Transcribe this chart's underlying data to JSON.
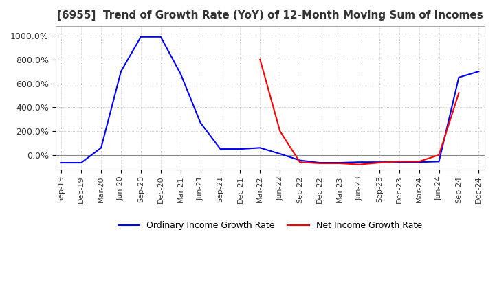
{
  "title": "[6955]  Trend of Growth Rate (YoY) of 12-Month Moving Sum of Incomes",
  "title_fontsize": 11,
  "ylim": [
    -120,
    1080
  ],
  "yticks": [
    0,
    200,
    400,
    600,
    800,
    1000
  ],
  "ytick_labels": [
    "0.0%",
    "200.0%",
    "400.0%",
    "600.0%",
    "800.0%",
    "1000.0%"
  ],
  "background_color": "#ffffff",
  "grid_color": "#bbbbbb",
  "ordinary_color": "#0000ff",
  "net_color": "#ff0000",
  "legend_labels": [
    "Ordinary Income Growth Rate",
    "Net Income Growth Rate"
  ],
  "x_labels": [
    "Sep-19",
    "Dec-19",
    "Mar-20",
    "Jun-20",
    "Sep-20",
    "Dec-20",
    "Mar-21",
    "Jun-21",
    "Sep-21",
    "Dec-21",
    "Mar-22",
    "Jun-22",
    "Sep-22",
    "Dec-22",
    "Mar-23",
    "Jun-23",
    "Sep-23",
    "Dec-23",
    "Mar-24",
    "Jun-24",
    "Sep-24",
    "Dec-24"
  ],
  "ordinary_values": [
    -65,
    -65,
    60,
    700,
    990,
    990,
    680,
    270,
    50,
    50,
    60,
    10,
    -45,
    -65,
    -65,
    -60,
    -60,
    -60,
    -60,
    -55,
    650,
    700
  ],
  "net_values": [
    null,
    null,
    null,
    null,
    null,
    null,
    null,
    null,
    null,
    null,
    800,
    200,
    -60,
    -70,
    -70,
    -80,
    -65,
    -55,
    -55,
    0,
    520,
    null
  ]
}
